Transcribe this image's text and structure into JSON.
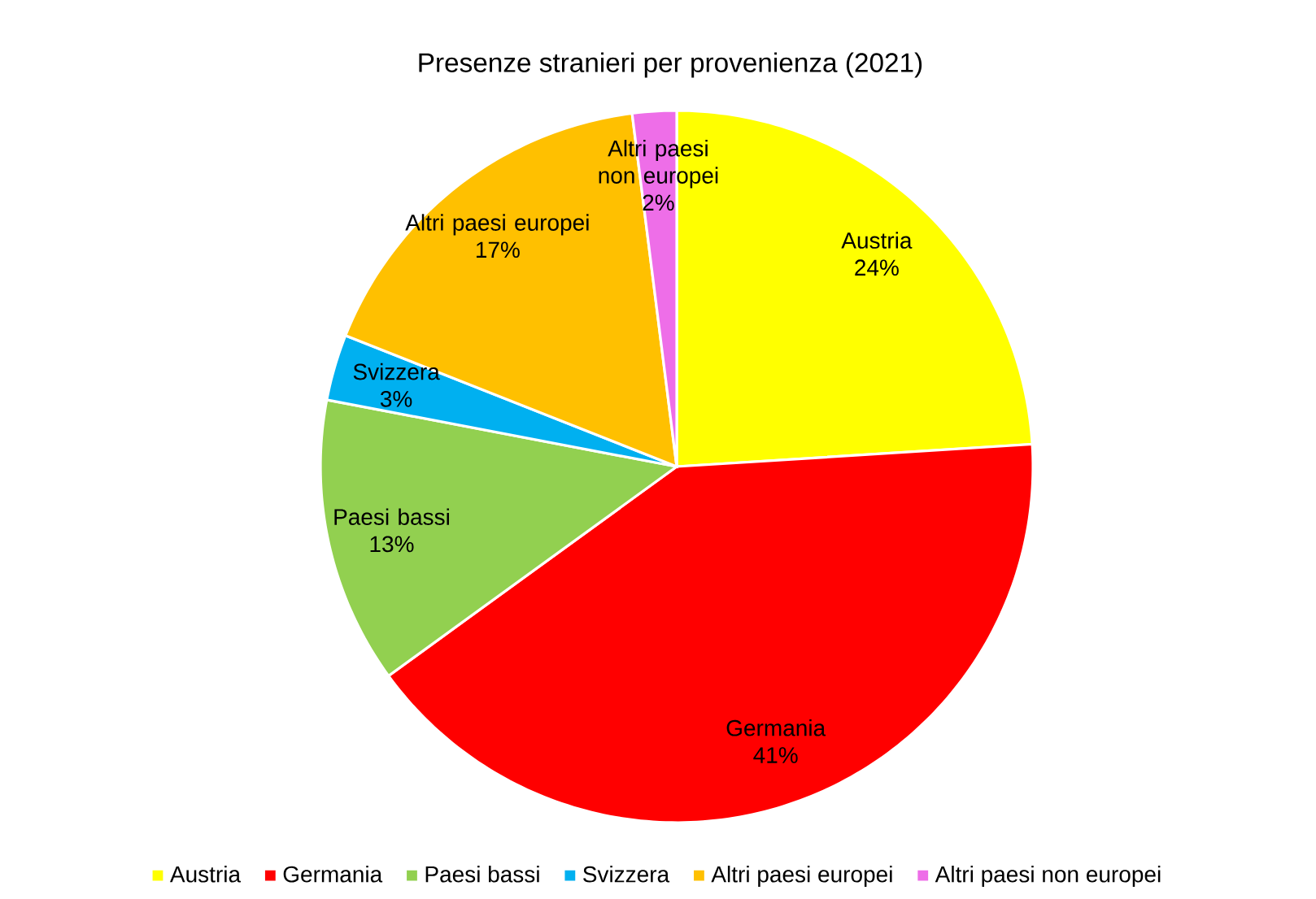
{
  "chart_data": {
    "type": "pie",
    "title": "Presenze stranieri per provenienza (2021)",
    "categories": [
      "Austria",
      "Germania",
      "Paesi bassi",
      "Svizzera",
      "Altri paesi europei",
      "Altri paesi non europei"
    ],
    "values": [
      24,
      41,
      13,
      3,
      17,
      2
    ],
    "value_labels": [
      "24%",
      "41%",
      "13%",
      "3%",
      "17%",
      "2%"
    ],
    "colors": [
      "#ffff00",
      "#ff0000",
      "#92d050",
      "#00b0f0",
      "#ffc000",
      "#ee6ee8"
    ],
    "legend": "bottom"
  }
}
